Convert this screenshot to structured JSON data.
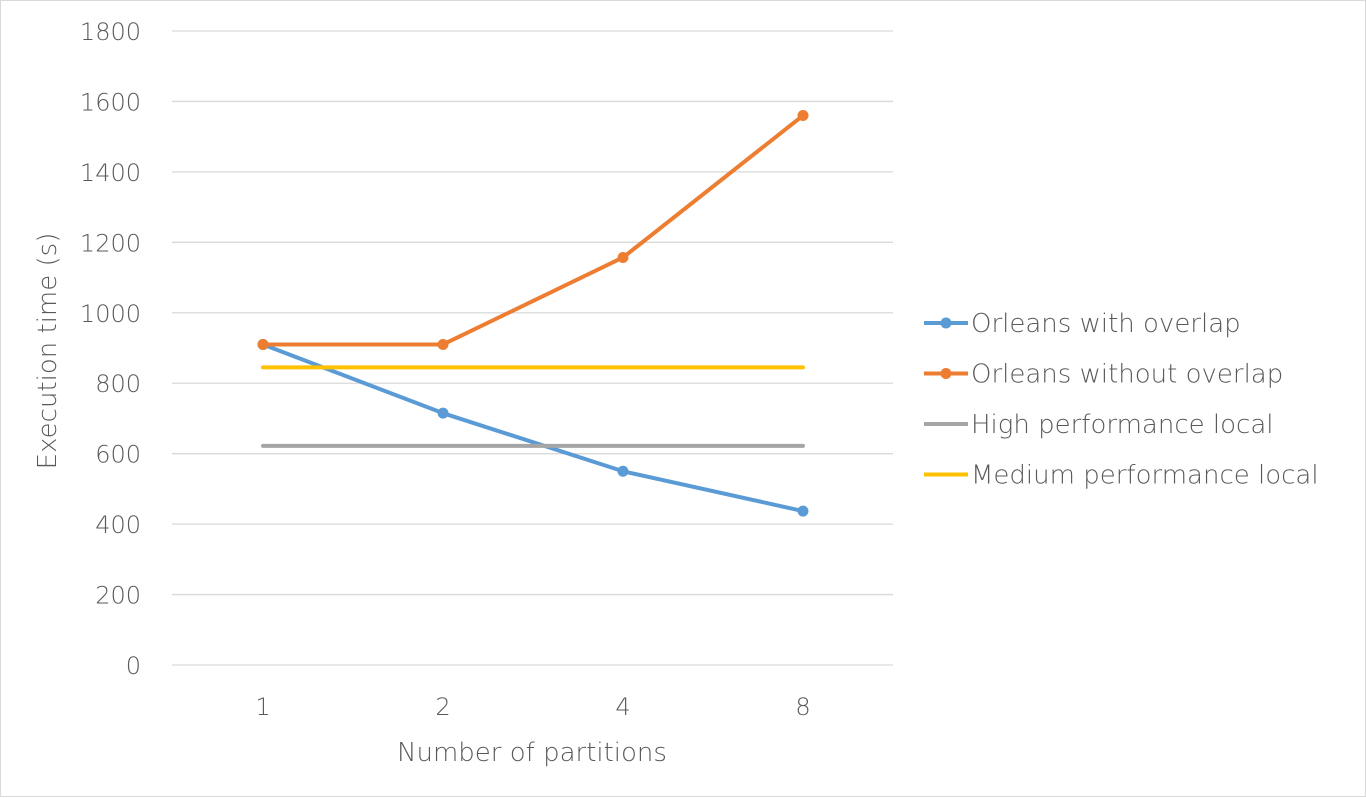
{
  "chart_data": {
    "type": "line",
    "categories": [
      "1",
      "2",
      "4",
      "8"
    ],
    "xlabel": "Number of partitions",
    "ylabel": "Execution time (s)",
    "ylim": [
      0,
      1800
    ],
    "yticks": [
      "0",
      "200",
      "400",
      "600",
      "800",
      "1000",
      "1200",
      "1400",
      "1600",
      "1800"
    ],
    "grid": true,
    "legend": "right",
    "series": [
      {
        "name": "Orleans with overlap",
        "color": "#5b9bd5",
        "markers": true,
        "values": [
          910,
          715,
          550,
          437
        ]
      },
      {
        "name": "Orleans without overlap",
        "color": "#ed7d31",
        "markers": true,
        "values": [
          910,
          910,
          1157,
          1560
        ]
      },
      {
        "name": "High performance local",
        "color": "#a5a5a5",
        "markers": false,
        "values": [
          622,
          622,
          622,
          622
        ]
      },
      {
        "name": "Medium performance local",
        "color": "#ffc000",
        "markers": false,
        "values": [
          845,
          845,
          845,
          845
        ]
      }
    ]
  }
}
